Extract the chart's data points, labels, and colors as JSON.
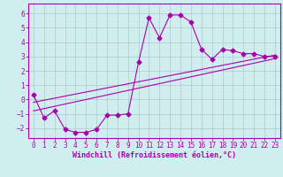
{
  "background_color": "#d0eef0",
  "grid_color": "#b0c8cc",
  "line_color": "#aa00aa",
  "marker": "D",
  "xlabel": "Windchill (Refroidissement éolien,°C)",
  "xlabel_fontsize": 6.0,
  "tick_fontsize": 5.5,
  "xlim": [
    -0.5,
    23.5
  ],
  "ylim": [
    -2.7,
    6.7
  ],
  "yticks": [
    -2,
    -1,
    0,
    1,
    2,
    3,
    4,
    5,
    6
  ],
  "xticks": [
    0,
    1,
    2,
    3,
    4,
    5,
    6,
    7,
    8,
    9,
    10,
    11,
    12,
    13,
    14,
    15,
    16,
    17,
    18,
    19,
    20,
    21,
    22,
    23
  ],
  "series1_x": [
    0,
    1,
    2,
    3,
    4,
    5,
    6,
    7,
    8,
    9,
    10,
    11,
    12,
    13,
    14,
    15,
    16,
    17,
    18,
    19,
    20,
    21,
    22,
    23
  ],
  "series1_y": [
    0.3,
    -1.3,
    -0.8,
    -2.1,
    -2.3,
    -2.3,
    -2.1,
    -1.1,
    -1.1,
    -1.0,
    2.6,
    5.7,
    4.3,
    5.9,
    5.9,
    5.4,
    3.5,
    2.8,
    3.5,
    3.4,
    3.2,
    3.2,
    3.0,
    3.0
  ],
  "series2_x": [
    0,
    23
  ],
  "series2_y": [
    -0.2,
    3.1
  ],
  "series3_x": [
    0,
    23
  ],
  "series3_y": [
    -0.8,
    2.85
  ]
}
